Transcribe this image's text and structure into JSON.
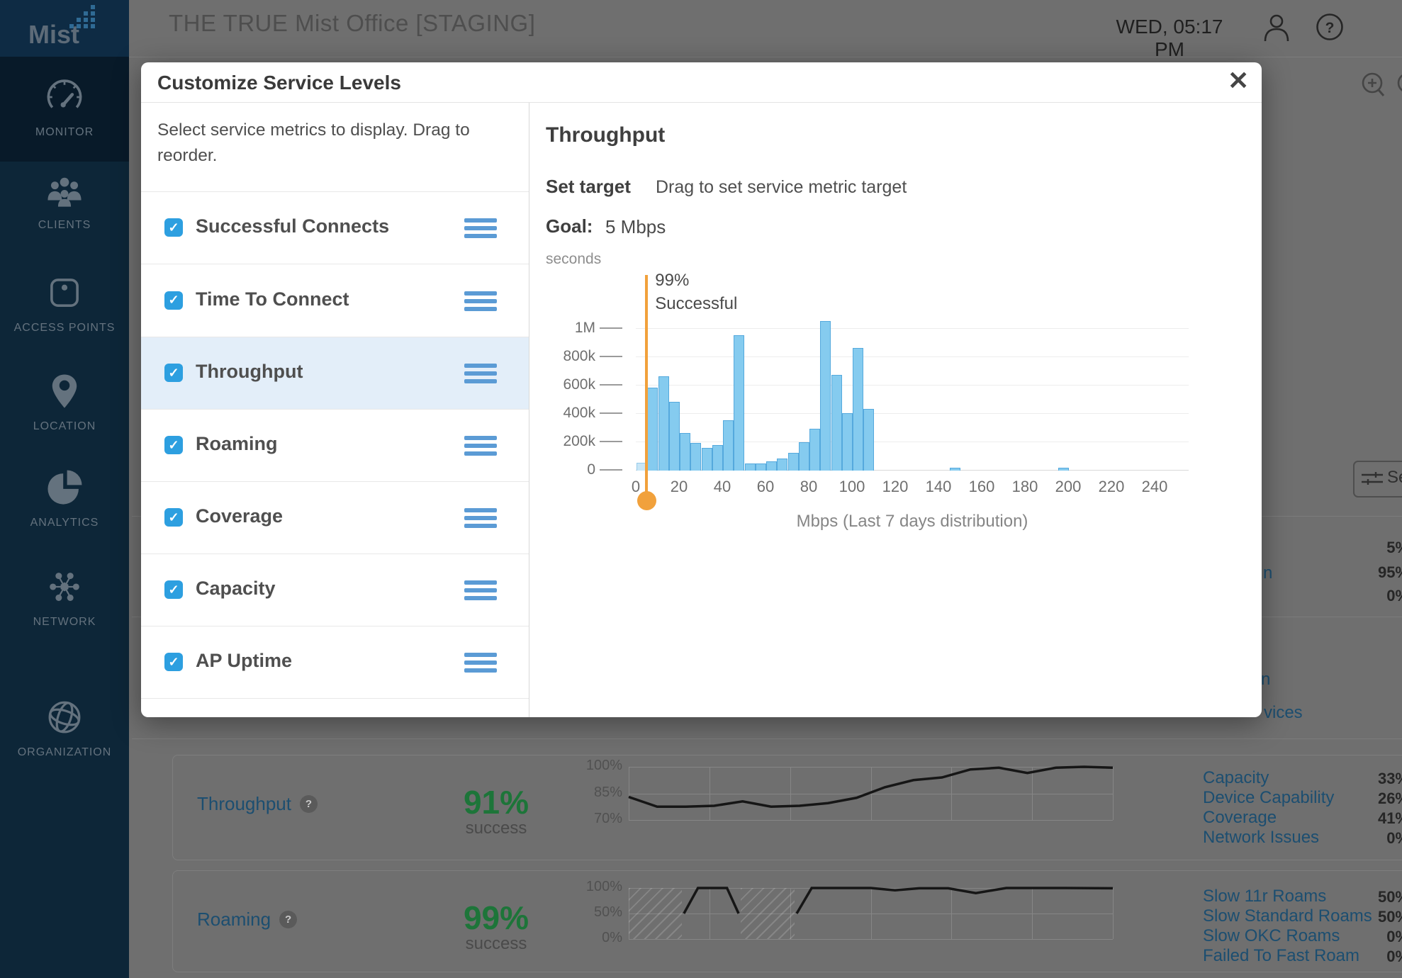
{
  "colors": {
    "checkbox_blue": "#2D9FE0",
    "handle_blue": "#5B9BD5",
    "row_highlight": "#E3EEF9",
    "bar_fill": "#85CBEF",
    "bar_stroke": "#55A9DD",
    "bar_below_target_fill": "#C8E6F7",
    "target_orange": "#F1A13C",
    "dimmed_link_blue": "#1C4E70",
    "dimmed_success_green": "#1D7539"
  },
  "sidebar": {
    "logo_text": "Mist",
    "items": [
      {
        "label": "MONITOR",
        "icon": "gauge-icon",
        "selected": true
      },
      {
        "label": "CLIENTS",
        "icon": "people-icon",
        "selected": false
      },
      {
        "label": "ACCESS POINTS",
        "icon": "access-point-icon",
        "selected": false
      },
      {
        "label": "LOCATION",
        "icon": "location-pin-icon",
        "selected": false
      },
      {
        "label": "ANALYTICS",
        "icon": "pie-chart-icon",
        "selected": false
      },
      {
        "label": "NETWORK",
        "icon": "network-icon",
        "selected": false
      },
      {
        "label": "ORGANIZATION",
        "icon": "globe-icon",
        "selected": false
      }
    ]
  },
  "header": {
    "site_title": "THE TRUE Mist Office [STAGING]",
    "clock": "WED, 05:17 PM",
    "icons": [
      "person-icon",
      "help-icon"
    ]
  },
  "modal": {
    "title": "Customize Service Levels",
    "close_icon": "✕",
    "intro": "Select service metrics to display. Drag to reorder.",
    "metrics": [
      {
        "label": "Successful Connects",
        "checked": true,
        "highlighted": false
      },
      {
        "label": "Time To Connect",
        "checked": true,
        "highlighted": false
      },
      {
        "label": "Throughput",
        "checked": true,
        "highlighted": true
      },
      {
        "label": "Roaming",
        "checked": true,
        "highlighted": false
      },
      {
        "label": "Coverage",
        "checked": true,
        "highlighted": false
      },
      {
        "label": "Capacity",
        "checked": true,
        "highlighted": false
      },
      {
        "label": "AP Uptime",
        "checked": true,
        "highlighted": false
      }
    ],
    "detail": {
      "title": "Throughput",
      "set_target_label": "Set target",
      "set_target_hint": "Drag to set service metric target",
      "goal_label": "Goal:",
      "goal_value": "5 Mbps",
      "y_unit": "seconds",
      "target_label_line1": "99%",
      "target_label_line2": "Successful"
    }
  },
  "background": {
    "zoom_icons": [
      "zoom-in-icon",
      "zoom-icon-partial"
    ],
    "settings_button_visible_text": "Se",
    "upper_card_fragments": [
      {
        "label_fragment": "",
        "value": "5%"
      },
      {
        "label_fragment": "n",
        "value": "95%"
      },
      {
        "label_fragment": "",
        "value": "0%"
      }
    ],
    "lower_card_fragments": {
      "link1": "n",
      "link2": "vices"
    },
    "rows": [
      {
        "title": "Throughput",
        "help_icon": "?",
        "value": "91%",
        "caption": "success",
        "y_ticks": [
          "100%",
          "85%",
          "70%"
        ],
        "classifiers": [
          {
            "label": "Capacity",
            "value": "33%"
          },
          {
            "label": "Device Capability",
            "value": "26%"
          },
          {
            "label": "Coverage",
            "value": "41%"
          },
          {
            "label": "Network Issues",
            "value": "0%"
          }
        ]
      },
      {
        "title": "Roaming",
        "help_icon": "?",
        "value": "99%",
        "caption": "success",
        "y_ticks": [
          "100%",
          "50%",
          "0%"
        ],
        "classifiers": [
          {
            "label": "Slow 11r Roams",
            "value": "50%"
          },
          {
            "label": "Slow Standard Roams",
            "value": "50%"
          },
          {
            "label": "Slow OKC Roams",
            "value": "0%"
          },
          {
            "label": "Failed To Fast Roam",
            "value": "0%"
          }
        ]
      }
    ]
  },
  "chart_data": [
    {
      "id": "throughput-distribution",
      "type": "bar",
      "xlabel": "Mbps (Last 7 days distribution)",
      "ylabel": "seconds",
      "xlim": [
        0,
        256
      ],
      "ylim": [
        0,
        1215000
      ],
      "bin_width": 5,
      "x_ticks": [
        0,
        20,
        40,
        60,
        80,
        100,
        120,
        140,
        160,
        180,
        200,
        220,
        240
      ],
      "y_ticks": [
        {
          "v": 0,
          "label": "0"
        },
        {
          "v": 200000,
          "label": "200k"
        },
        {
          "v": 400000,
          "label": "400k"
        },
        {
          "v": 600000,
          "label": "600k"
        },
        {
          "v": 800000,
          "label": "800k"
        },
        {
          "v": 1000000,
          "label": "1M"
        }
      ],
      "bins": [
        {
          "x": 0,
          "count": 50000,
          "below_target": true
        },
        {
          "x": 5,
          "count": 580000
        },
        {
          "x": 10,
          "count": 660000
        },
        {
          "x": 15,
          "count": 480000
        },
        {
          "x": 20,
          "count": 260000
        },
        {
          "x": 25,
          "count": 190000
        },
        {
          "x": 30,
          "count": 155000
        },
        {
          "x": 35,
          "count": 175000
        },
        {
          "x": 40,
          "count": 350000
        },
        {
          "x": 45,
          "count": 950000
        },
        {
          "x": 50,
          "count": 45000
        },
        {
          "x": 55,
          "count": 45000
        },
        {
          "x": 60,
          "count": 60000
        },
        {
          "x": 65,
          "count": 80000
        },
        {
          "x": 70,
          "count": 120000
        },
        {
          "x": 75,
          "count": 195000
        },
        {
          "x": 80,
          "count": 290000
        },
        {
          "x": 85,
          "count": 1050000
        },
        {
          "x": 90,
          "count": 670000
        },
        {
          "x": 95,
          "count": 400000
        },
        {
          "x": 100,
          "count": 860000
        },
        {
          "x": 105,
          "count": 430000
        },
        {
          "x": 145,
          "count": 15000
        },
        {
          "x": 195,
          "count": 15000
        }
      ],
      "target": {
        "x": 5,
        "label_line1": "99%",
        "label_line2": "Successful",
        "color": "#F1A13C"
      }
    },
    {
      "id": "throughput-trend",
      "type": "line",
      "ylim": [
        70,
        100
      ],
      "y_ticks": [
        "100%",
        "85%",
        "70%"
      ],
      "values": [
        83,
        77.5,
        77.5,
        78,
        80.5,
        77.5,
        78,
        79.5,
        82.5,
        88.5,
        92.5,
        94,
        98.5,
        99.5,
        96.5,
        99.5,
        100,
        99.5
      ]
    },
    {
      "id": "roaming-trend",
      "type": "line",
      "ylim": [
        0,
        100
      ],
      "y_ticks": [
        "100%",
        "50%",
        "0%"
      ],
      "segments": [
        [
          [
            0.114,
            50
          ],
          [
            0.143,
            100
          ],
          [
            0.203,
            100
          ],
          [
            0.227,
            50
          ]
        ],
        [
          [
            0.347,
            50
          ],
          [
            0.378,
            100
          ],
          [
            0.5,
            100
          ],
          [
            0.55,
            95.5
          ],
          [
            0.6,
            99.5
          ],
          [
            0.66,
            99.5
          ],
          [
            0.717,
            90
          ],
          [
            0.78,
            100
          ],
          [
            0.9,
            100
          ],
          [
            1.0,
            99.5
          ]
        ]
      ],
      "no_data_regions": [
        [
          0,
          0.11
        ],
        [
          0.231,
          0.343
        ]
      ]
    }
  ]
}
